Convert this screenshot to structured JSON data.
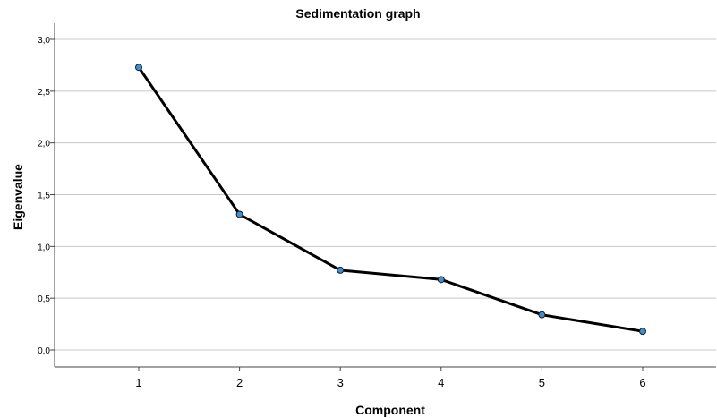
{
  "chart_data": {
    "type": "line",
    "title": "Sedimentation graph",
    "xlabel": "Component",
    "ylabel": "Eigenvalue",
    "x": [
      1,
      2,
      3,
      4,
      5,
      6
    ],
    "x_tick_labels": [
      "1",
      "2",
      "3",
      "4",
      "5",
      "6"
    ],
    "y": [
      2.73,
      1.31,
      0.77,
      0.68,
      0.34,
      0.18
    ],
    "ylim": [
      0,
      3.0
    ],
    "y_ticks": [
      0,
      0.5,
      1.0,
      1.5,
      2.0,
      2.5,
      3.0
    ],
    "y_tick_labels": [
      "0,0",
      "0,5",
      "1,0",
      "1,5",
      "2,0",
      "2,5",
      "3,0"
    ],
    "grid": "horizontal",
    "line_color": "#000000",
    "marker_color": "#3d8fd6"
  }
}
